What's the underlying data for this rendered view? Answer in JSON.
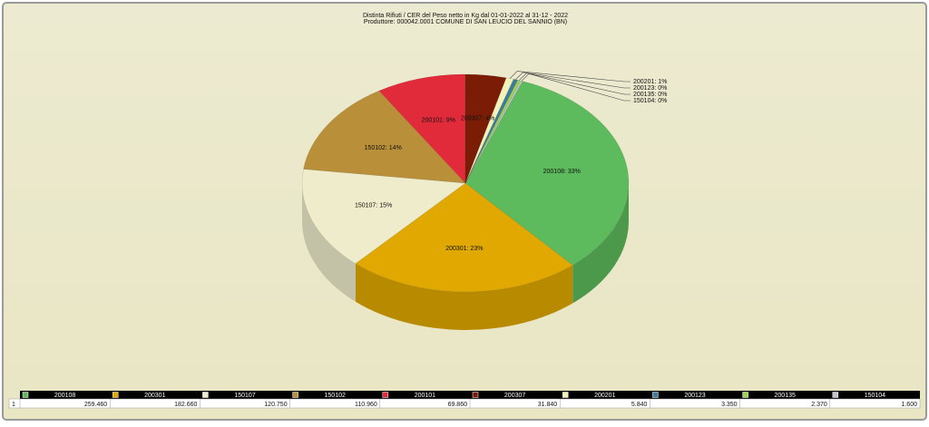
{
  "chart_data": {
    "type": "pie",
    "three_d": true,
    "title": "Distinta Rifiuti / CER  del Peso netto in Kg dal 01-01-2022 al 31-12 - 2022",
    "subtitle": "Produttore: 000042.0001 COMUNE DI SAN LEUCIO DEL SANNIO (BN)",
    "categories": [
      "200108",
      "200301",
      "150107",
      "150102",
      "200101",
      "200307",
      "200201",
      "200123",
      "200135",
      "150104"
    ],
    "values": [
      259.46,
      182.66,
      120.75,
      110.96,
      69.86,
      31.84,
      5.84,
      3.35,
      2.37,
      1.6
    ],
    "value_labels": [
      "259.460",
      "182.660",
      "120.750",
      "110.960",
      "69.860",
      "31.840",
      "5.840",
      "3.350",
      "2.370",
      "1.600"
    ],
    "slice_labels": [
      "200108: 33%",
      "200301: 23%",
      "150107: 15%",
      "150102: 14%",
      "200101: 9%",
      "200307: 4%",
      "200201: 1%",
      "200123: 0%",
      "200135: 0%",
      "150104: 0%"
    ],
    "colors": [
      "#5dba5d",
      "#e0a800",
      "#efeccb",
      "#b98f3a",
      "#e12b3b",
      "#7a1c06",
      "#f2f2b8",
      "#3c7c9c",
      "#9dd24e",
      "#c2c2ca"
    ],
    "table_row_label": "1"
  }
}
